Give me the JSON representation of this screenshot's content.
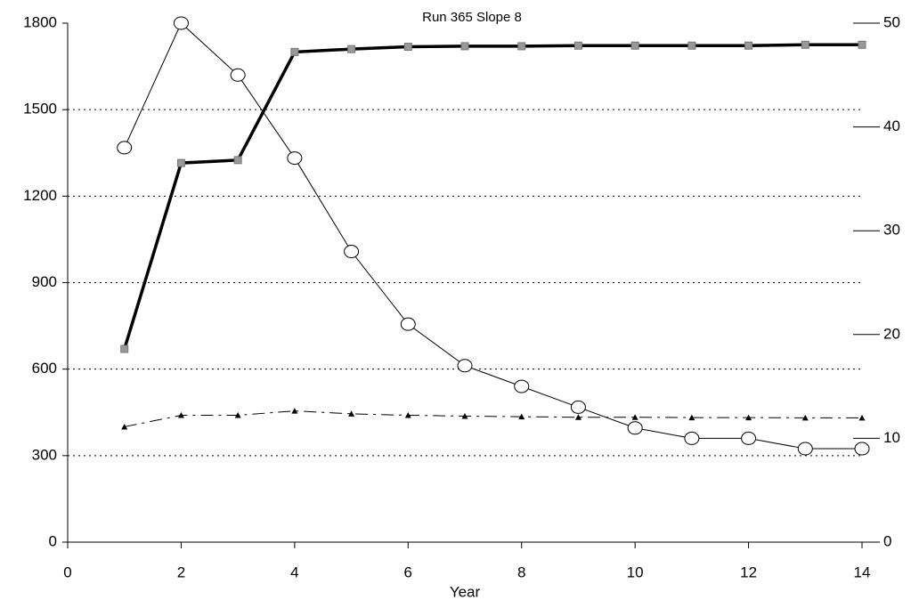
{
  "chart_data": {
    "type": "line",
    "title": "Run 365  Slope 8",
    "x_label": "Year",
    "x": [
      1,
      2,
      3,
      4,
      5,
      6,
      7,
      8,
      9,
      10,
      11,
      12,
      13,
      14
    ],
    "series": [
      {
        "color": "#000000",
        "marker": "square",
        "linestyle": "solid",
        "linewidth": 3.5,
        "values": [
          670,
          1315,
          1325,
          1700,
          1710,
          1718,
          1720,
          1720,
          1722,
          1722,
          1722,
          1722,
          1725,
          1725
        ]
      },
      {
        "color": "#000000",
        "marker": "circle",
        "linestyle": "solid",
        "linewidth": 1,
        "axis": "y2",
        "values": [
          38,
          50,
          45,
          37,
          28,
          21,
          17,
          15,
          13,
          11,
          10,
          10,
          9,
          9
        ]
      },
      {
        "color": "#000000",
        "marker": "triangle",
        "linestyle": "dashed",
        "linewidth": 1,
        "values": [
          400,
          440,
          440,
          455,
          445,
          440,
          437,
          435,
          433,
          433,
          432,
          432,
          431,
          431
        ]
      }
    ],
    "xlim": [
      0,
      14
    ],
    "xticks": [
      0,
      2,
      4,
      6,
      8,
      10,
      12,
      14
    ],
    "ylim": [
      0,
      1800
    ],
    "yticks": [
      0,
      300,
      600,
      900,
      1200,
      1500,
      1800
    ],
    "y2lim": [
      0,
      50
    ],
    "y2ticks": [
      0,
      10,
      20,
      30,
      40,
      50
    ],
    "grid": true
  }
}
